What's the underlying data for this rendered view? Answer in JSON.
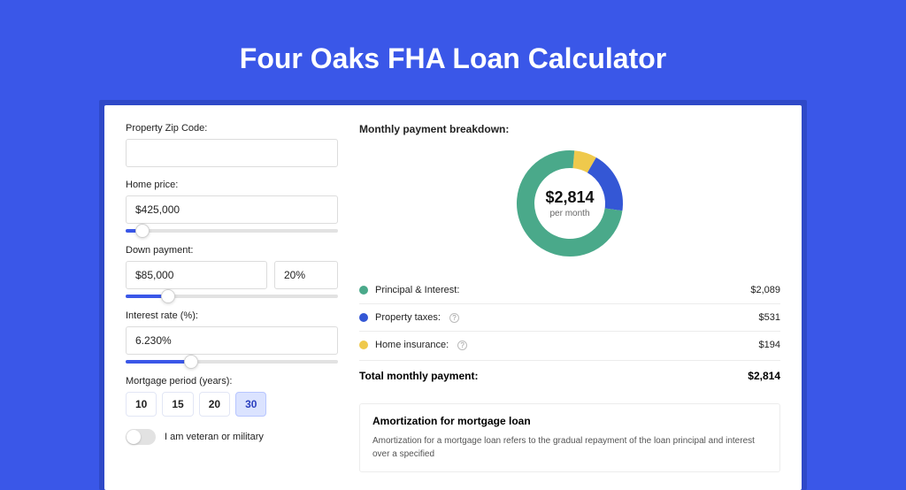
{
  "page": {
    "title": "Four Oaks FHA Loan Calculator",
    "colors": {
      "page_bg": "#3a57e8",
      "inset_bg": "#2f49c8",
      "card_bg": "#ffffff",
      "accent": "#3a57e8"
    }
  },
  "form": {
    "zip": {
      "label": "Property Zip Code:",
      "value": ""
    },
    "home_price": {
      "label": "Home price:",
      "value": "$425,000",
      "slider": {
        "fill_pct": 8,
        "thumb_pct": 8
      }
    },
    "down_payment": {
      "label": "Down payment:",
      "amount": "$85,000",
      "pct": "20%",
      "slider": {
        "fill_pct": 20,
        "thumb_pct": 20
      }
    },
    "interest_rate": {
      "label": "Interest rate (%):",
      "value": "6.230%",
      "slider": {
        "fill_pct": 31,
        "thumb_pct": 31
      }
    },
    "period": {
      "label": "Mortgage period (years):",
      "options": [
        "10",
        "15",
        "20",
        "30"
      ],
      "selected": "30"
    },
    "veteran": {
      "label": "I am veteran or military",
      "checked": false
    }
  },
  "breakdown": {
    "title": "Monthly payment breakdown:",
    "donut": {
      "center_value": "$2,814",
      "center_sub": "per month",
      "slices": [
        {
          "key": "principal_interest",
          "value": 2089,
          "pct": 74.2,
          "color": "#4aa98a"
        },
        {
          "key": "property_taxes",
          "value": 531,
          "pct": 18.9,
          "color": "#3457d5"
        },
        {
          "key": "home_insurance",
          "value": 194,
          "pct": 6.9,
          "color": "#efc94c"
        }
      ],
      "stroke_width": 20,
      "radius": 50,
      "bg_color": "#ffffff"
    },
    "rows": [
      {
        "label": "Principal & Interest:",
        "value": "$2,089",
        "color": "#4aa98a",
        "info": false
      },
      {
        "label": "Property taxes:",
        "value": "$531",
        "color": "#3457d5",
        "info": true
      },
      {
        "label": "Home insurance:",
        "value": "$194",
        "color": "#efc94c",
        "info": true
      }
    ],
    "total": {
      "label": "Total monthly payment:",
      "value": "$2,814"
    }
  },
  "amortization": {
    "title": "Amortization for mortgage loan",
    "text": "Amortization for a mortgage loan refers to the gradual repayment of the loan principal and interest over a specified"
  }
}
